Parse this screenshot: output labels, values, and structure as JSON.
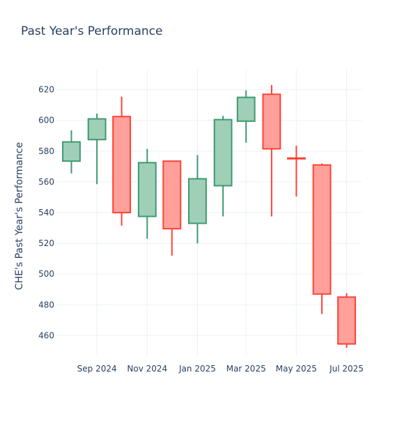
{
  "chart_data": {
    "type": "candlestick",
    "title": "Past Year's Performance",
    "xlabel": "",
    "ylabel": "CHE's Past Year's Performance",
    "ylim": [
      447,
      633
    ],
    "grid": true,
    "legend": "none",
    "x_ticks": [
      {
        "label": "Sep 2024",
        "date": "2024-09-01"
      },
      {
        "label": "Nov 2024",
        "date": "2024-11-01"
      },
      {
        "label": "Jan 2025",
        "date": "2025-01-01"
      },
      {
        "label": "Mar 2025",
        "date": "2025-03-01"
      },
      {
        "label": "May 2025",
        "date": "2025-05-01"
      },
      {
        "label": "Jul 2025",
        "date": "2025-07-01"
      }
    ],
    "y_ticks": [
      460,
      480,
      500,
      520,
      540,
      560,
      580,
      600,
      620
    ],
    "colors": {
      "increasing_line": "#3d9970",
      "increasing_fill": "#9fcfb7",
      "decreasing_line": "#ff4136",
      "decreasing_fill": "#ffa09b",
      "grid": "#ebf0f8",
      "text": "#2a3f5f"
    },
    "candles": [
      {
        "date": "2024-08-01",
        "open": 573.5,
        "high": 593.5,
        "low": 565.5,
        "close": 586.0
      },
      {
        "date": "2024-09-01",
        "open": 587.5,
        "high": 604.5,
        "low": 558.5,
        "close": 601.0
      },
      {
        "date": "2024-10-01",
        "open": 602.5,
        "high": 615.5,
        "low": 531.5,
        "close": 540.0
      },
      {
        "date": "2024-11-01",
        "open": 537.5,
        "high": 581.5,
        "low": 523.0,
        "close": 572.5
      },
      {
        "date": "2024-12-01",
        "open": 573.5,
        "high": 573.5,
        "low": 512.0,
        "close": 529.5
      },
      {
        "date": "2025-01-01",
        "open": 533.0,
        "high": 577.5,
        "low": 520.0,
        "close": 562.0
      },
      {
        "date": "2025-02-01",
        "open": 557.5,
        "high": 603.0,
        "low": 537.5,
        "close": 600.5
      },
      {
        "date": "2025-03-01",
        "open": 599.5,
        "high": 619.5,
        "low": 585.5,
        "close": 615.0
      },
      {
        "date": "2025-04-01",
        "open": 617.0,
        "high": 623.0,
        "low": 537.5,
        "close": 581.5
      },
      {
        "date": "2025-05-01",
        "open": 575.5,
        "high": 583.5,
        "low": 550.5,
        "close": 575.0
      },
      {
        "date": "2025-06-01",
        "open": 571.0,
        "high": 572.0,
        "low": 474.0,
        "close": 487.0
      },
      {
        "date": "2025-07-01",
        "open": 485.0,
        "high": 487.5,
        "low": 452.0,
        "close": 454.5
      }
    ]
  }
}
